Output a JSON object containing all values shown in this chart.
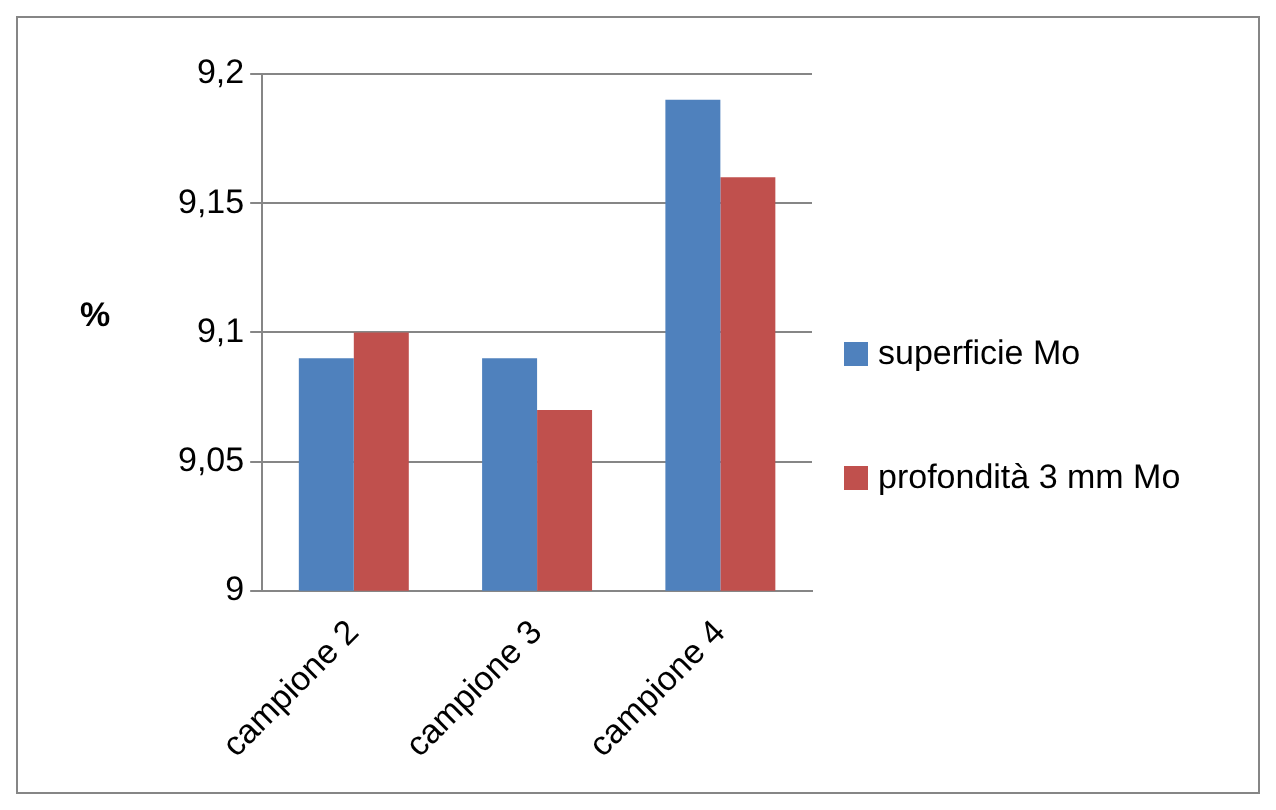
{
  "chart_data": {
    "type": "bar",
    "ylabel": "%",
    "categories": [
      "campione 2",
      "campione 3",
      "campione 4"
    ],
    "series": [
      {
        "name": "superficie Mo",
        "color": "#4f81bd",
        "values": [
          9.09,
          9.09,
          9.19
        ]
      },
      {
        "name": "profondità 3 mm Mo",
        "color": "#c0504d",
        "values": [
          9.1,
          9.07,
          9.16
        ]
      }
    ],
    "ylim": [
      9,
      9.2
    ],
    "yticks": [
      9,
      {
        "value": 9.05,
        "label": "9,05"
      },
      {
        "value": 9.1,
        "label": "9,1"
      },
      {
        "value": 9.15,
        "label": "9,15"
      },
      {
        "value": 9.2,
        "label": "9,2"
      }
    ],
    "grid": "y",
    "legend": "right"
  }
}
